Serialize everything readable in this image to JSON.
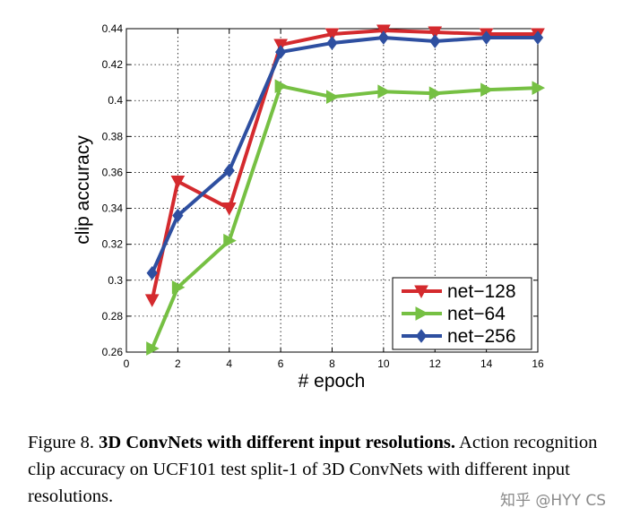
{
  "chart_data": {
    "type": "line",
    "title": "",
    "xlabel": "# epoch",
    "ylabel": "clip accuracy",
    "xlim": [
      0,
      16
    ],
    "ylim": [
      0.26,
      0.44
    ],
    "x_ticks": [
      "0",
      "2",
      "4",
      "6",
      "8",
      "10",
      "12",
      "14",
      "16"
    ],
    "y_ticks": [
      "0.26",
      "0.28",
      "0.3",
      "0.32",
      "0.34",
      "0.36",
      "0.38",
      "0.4",
      "0.42",
      "0.44"
    ],
    "grid": true,
    "legend_position": "bottom-right",
    "x": [
      1,
      2,
      4,
      6,
      8,
      10,
      12,
      14,
      16
    ],
    "series": [
      {
        "name": "net−128",
        "color": "#d42a2e",
        "marker": "triangle-down",
        "values": [
          0.289,
          0.355,
          0.34,
          0.431,
          0.437,
          0.439,
          0.438,
          0.437,
          0.437
        ]
      },
      {
        "name": "net−64",
        "color": "#76c043",
        "marker": "triangle-right",
        "values": [
          0.262,
          0.296,
          0.322,
          0.408,
          0.402,
          0.405,
          0.404,
          0.406,
          0.407
        ]
      },
      {
        "name": "net−256",
        "color": "#2e4fa0",
        "marker": "diamond",
        "values": [
          0.304,
          0.336,
          0.361,
          0.427,
          0.432,
          0.435,
          0.433,
          0.435,
          0.435
        ]
      }
    ]
  },
  "caption": {
    "prefix": "Figure 8. ",
    "bold": "3D ConvNets with different input resolutions.",
    "rest": " Action recognition clip accuracy on UCF101 test split-1 of 3D ConvNets with different input resolutions."
  },
  "watermark": "知乎 @HYY CS"
}
